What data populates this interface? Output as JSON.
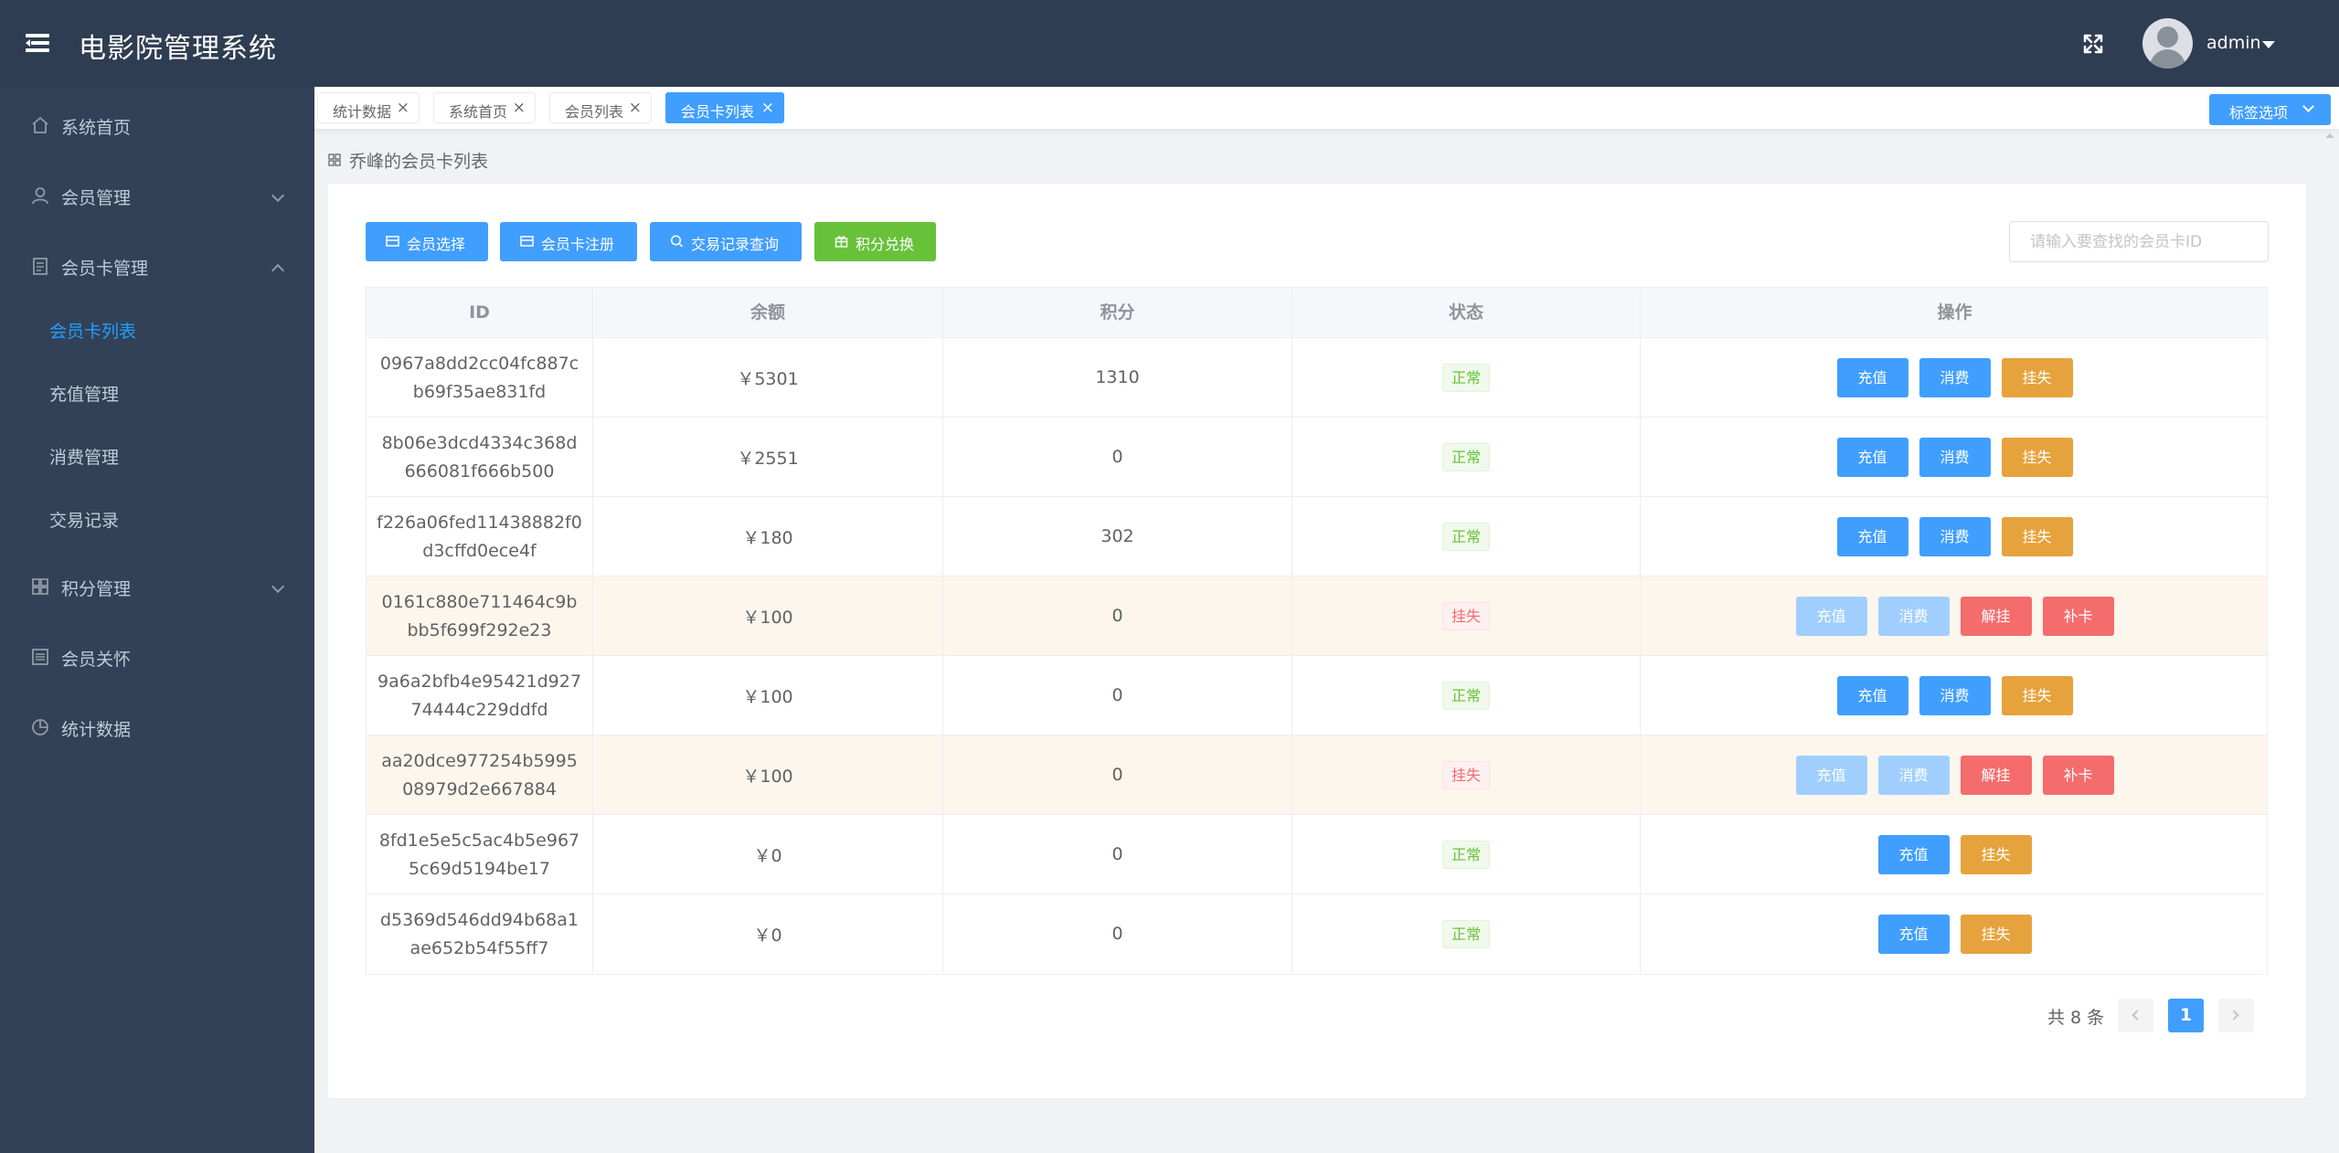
{
  "header": {
    "title": "电影院管理系统",
    "username": "admin"
  },
  "sidebar": {
    "items": [
      {
        "label": "系统首页"
      },
      {
        "label": "会员管理"
      },
      {
        "label": "会员卡管理"
      },
      {
        "label": "积分管理"
      },
      {
        "label": "会员关怀"
      },
      {
        "label": "统计数据"
      }
    ],
    "card_sub": [
      {
        "label": "会员卡列表"
      },
      {
        "label": "充值管理"
      },
      {
        "label": "消费管理"
      },
      {
        "label": "交易记录"
      }
    ]
  },
  "tags": [
    {
      "label": "统计数据"
    },
    {
      "label": "系统首页"
    },
    {
      "label": "会员列表"
    },
    {
      "label": "会员卡列表"
    }
  ],
  "tag_options_label": "标签选项",
  "breadcrumb": "乔峰的会员卡列表",
  "toolbar": {
    "select_member": "会员选择",
    "card_register": "会员卡注册",
    "trade_query": "交易记录查询",
    "points_exchange": "积分兑换"
  },
  "search": {
    "placeholder": "请输入要查找的会员卡ID",
    "value": ""
  },
  "table": {
    "headers": {
      "id": "ID",
      "balance": "余额",
      "points": "积分",
      "status": "状态",
      "ops": "操作"
    },
    "rows": [
      {
        "id": "0967a8dd2cc04fc887cb69f35ae831fd",
        "balance": "￥5301",
        "points": "1310",
        "status": "正常"
      },
      {
        "id": "8b06e3dcd4334c368d666081f666b500",
        "balance": "￥2551",
        "points": "0",
        "status": "正常"
      },
      {
        "id": "f226a06fed11438882f0d3cffd0ece4f",
        "balance": "￥180",
        "points": "302",
        "status": "正常"
      },
      {
        "id": "0161c880e711464c9bbb5f699f292e23",
        "balance": "￥100",
        "points": "0",
        "status": "挂失"
      },
      {
        "id": "9a6a2bfb4e95421d92774444c229ddfd",
        "balance": "￥100",
        "points": "0",
        "status": "正常"
      },
      {
        "id": "aa20dce977254b599508979d2e667884",
        "balance": "￥100",
        "points": "0",
        "status": "挂失"
      },
      {
        "id": "8fd1e5e5c5ac4b5e9675c69d5194be17",
        "balance": "￥0",
        "points": "0",
        "status": "正常"
      },
      {
        "id": "d5369d546dd94b68a1ae652b54f55ff7",
        "balance": "￥0",
        "points": "0",
        "status": "正常"
      }
    ],
    "op_labels": {
      "recharge": "充值",
      "consume": "消费",
      "report_loss": "挂失",
      "unlock": "解挂",
      "reissue": "补卡"
    }
  },
  "pagination": {
    "total_text": "共 8 条",
    "current_page": "1"
  },
  "colors": {
    "header_bg": "#2f3d52",
    "sidebar_bg": "#324157",
    "primary": "#409eff",
    "success": "#67c23a",
    "warning": "#e6a23c",
    "danger": "#f56c6c"
  }
}
